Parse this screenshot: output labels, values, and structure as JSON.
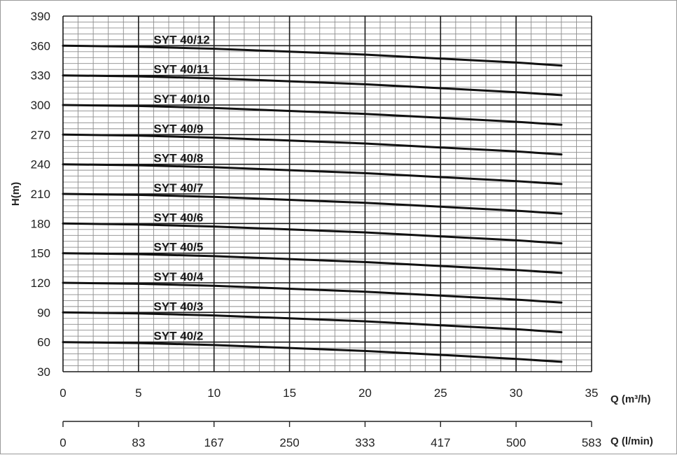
{
  "chart_data": {
    "type": "line",
    "ylabel": "H(m)",
    "xlabel": "Q (m³/h)",
    "xlabel_secondary": "Q (l/min)",
    "xlim": [
      0,
      35
    ],
    "ylim": [
      30,
      390
    ],
    "x_ticks": [
      "0",
      "5",
      "10",
      "15",
      "20",
      "25",
      "30",
      "35"
    ],
    "x_ticks_secondary": [
      "0",
      "83",
      "167",
      "250",
      "333",
      "417",
      "500",
      "583"
    ],
    "y_ticks": [
      "30",
      "60",
      "90",
      "120",
      "150",
      "180",
      "210",
      "240",
      "270",
      "300",
      "330",
      "360",
      "390"
    ],
    "grid": true,
    "series": [
      {
        "name": "SYT 40/12",
        "x": [
          0,
          5,
          10,
          15,
          20,
          25,
          30,
          33
        ],
        "y": [
          360,
          359,
          357,
          354,
          351,
          347,
          343,
          340
        ]
      },
      {
        "name": "SYT 40/11",
        "x": [
          0,
          5,
          10,
          15,
          20,
          25,
          30,
          33
        ],
        "y": [
          330,
          329,
          327,
          324,
          321,
          317,
          313,
          310
        ]
      },
      {
        "name": "SYT 40/10",
        "x": [
          0,
          5,
          10,
          15,
          20,
          25,
          30,
          33
        ],
        "y": [
          300,
          299,
          297,
          294,
          291,
          287,
          283,
          280
        ]
      },
      {
        "name": "SYT 40/9",
        "x": [
          0,
          5,
          10,
          15,
          20,
          25,
          30,
          33
        ],
        "y": [
          270,
          269,
          267,
          264,
          261,
          257,
          253,
          250
        ]
      },
      {
        "name": "SYT 40/8",
        "x": [
          0,
          5,
          10,
          15,
          20,
          25,
          30,
          33
        ],
        "y": [
          240,
          239,
          237,
          234,
          231,
          227,
          223,
          220
        ]
      },
      {
        "name": "SYT 40/7",
        "x": [
          0,
          5,
          10,
          15,
          20,
          25,
          30,
          33
        ],
        "y": [
          210,
          209,
          207,
          204,
          201,
          197,
          193,
          190
        ]
      },
      {
        "name": "SYT 40/6",
        "x": [
          0,
          5,
          10,
          15,
          20,
          25,
          30,
          33
        ],
        "y": [
          180,
          179,
          177,
          174,
          171,
          167,
          163,
          160
        ]
      },
      {
        "name": "SYT 40/5",
        "x": [
          0,
          5,
          10,
          15,
          20,
          25,
          30,
          33
        ],
        "y": [
          150,
          149,
          147,
          144,
          141,
          137,
          133,
          130
        ]
      },
      {
        "name": "SYT 40/4",
        "x": [
          0,
          5,
          10,
          15,
          20,
          25,
          30,
          33
        ],
        "y": [
          120,
          119,
          117,
          114,
          111,
          107,
          103,
          100
        ]
      },
      {
        "name": "SYT 40/3",
        "x": [
          0,
          5,
          10,
          15,
          20,
          25,
          30,
          33
        ],
        "y": [
          90,
          89,
          87,
          84,
          81,
          77,
          73,
          70
        ]
      },
      {
        "name": "SYT 40/2",
        "x": [
          0,
          5,
          10,
          15,
          20,
          25,
          30,
          33
        ],
        "y": [
          60,
          59,
          57,
          54,
          51,
          47,
          43,
          40
        ]
      }
    ],
    "colors": {
      "curve": "#111111",
      "grid_minor": "#8c8c8c",
      "grid_major": "#1a1a1a"
    }
  }
}
